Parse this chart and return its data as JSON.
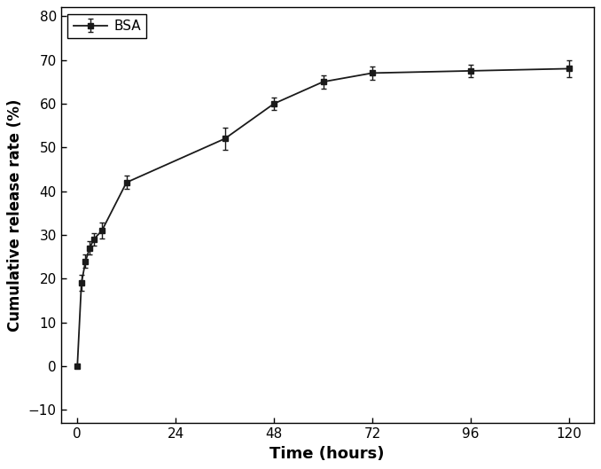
{
  "x": [
    0,
    1,
    2,
    3,
    4,
    6,
    12,
    36,
    48,
    60,
    72,
    96,
    120
  ],
  "y": [
    0,
    19,
    24,
    27,
    29,
    31,
    42,
    52,
    60,
    65,
    67,
    67.5,
    68
  ],
  "yerr": [
    0.3,
    1.8,
    1.5,
    1.5,
    1.5,
    1.8,
    1.5,
    2.5,
    1.5,
    1.5,
    1.5,
    1.5,
    2.0
  ],
  "label": "BSA",
  "color": "#1a1a1a",
  "marker": "s",
  "markersize": 5,
  "linewidth": 1.3,
  "xlabel": "Time (hours)",
  "ylabel": "Cumulative release rate (%)",
  "xlim": [
    -4,
    126
  ],
  "ylim": [
    -13,
    82
  ],
  "xticks": [
    0,
    24,
    48,
    72,
    96,
    120
  ],
  "yticks": [
    -10,
    0,
    10,
    20,
    30,
    40,
    50,
    60,
    70,
    80
  ],
  "xlabel_fontsize": 13,
  "ylabel_fontsize": 12,
  "tick_fontsize": 11,
  "legend_fontsize": 11,
  "capsize": 2.5,
  "elinewidth": 1.0,
  "background_color": "#ffffff"
}
